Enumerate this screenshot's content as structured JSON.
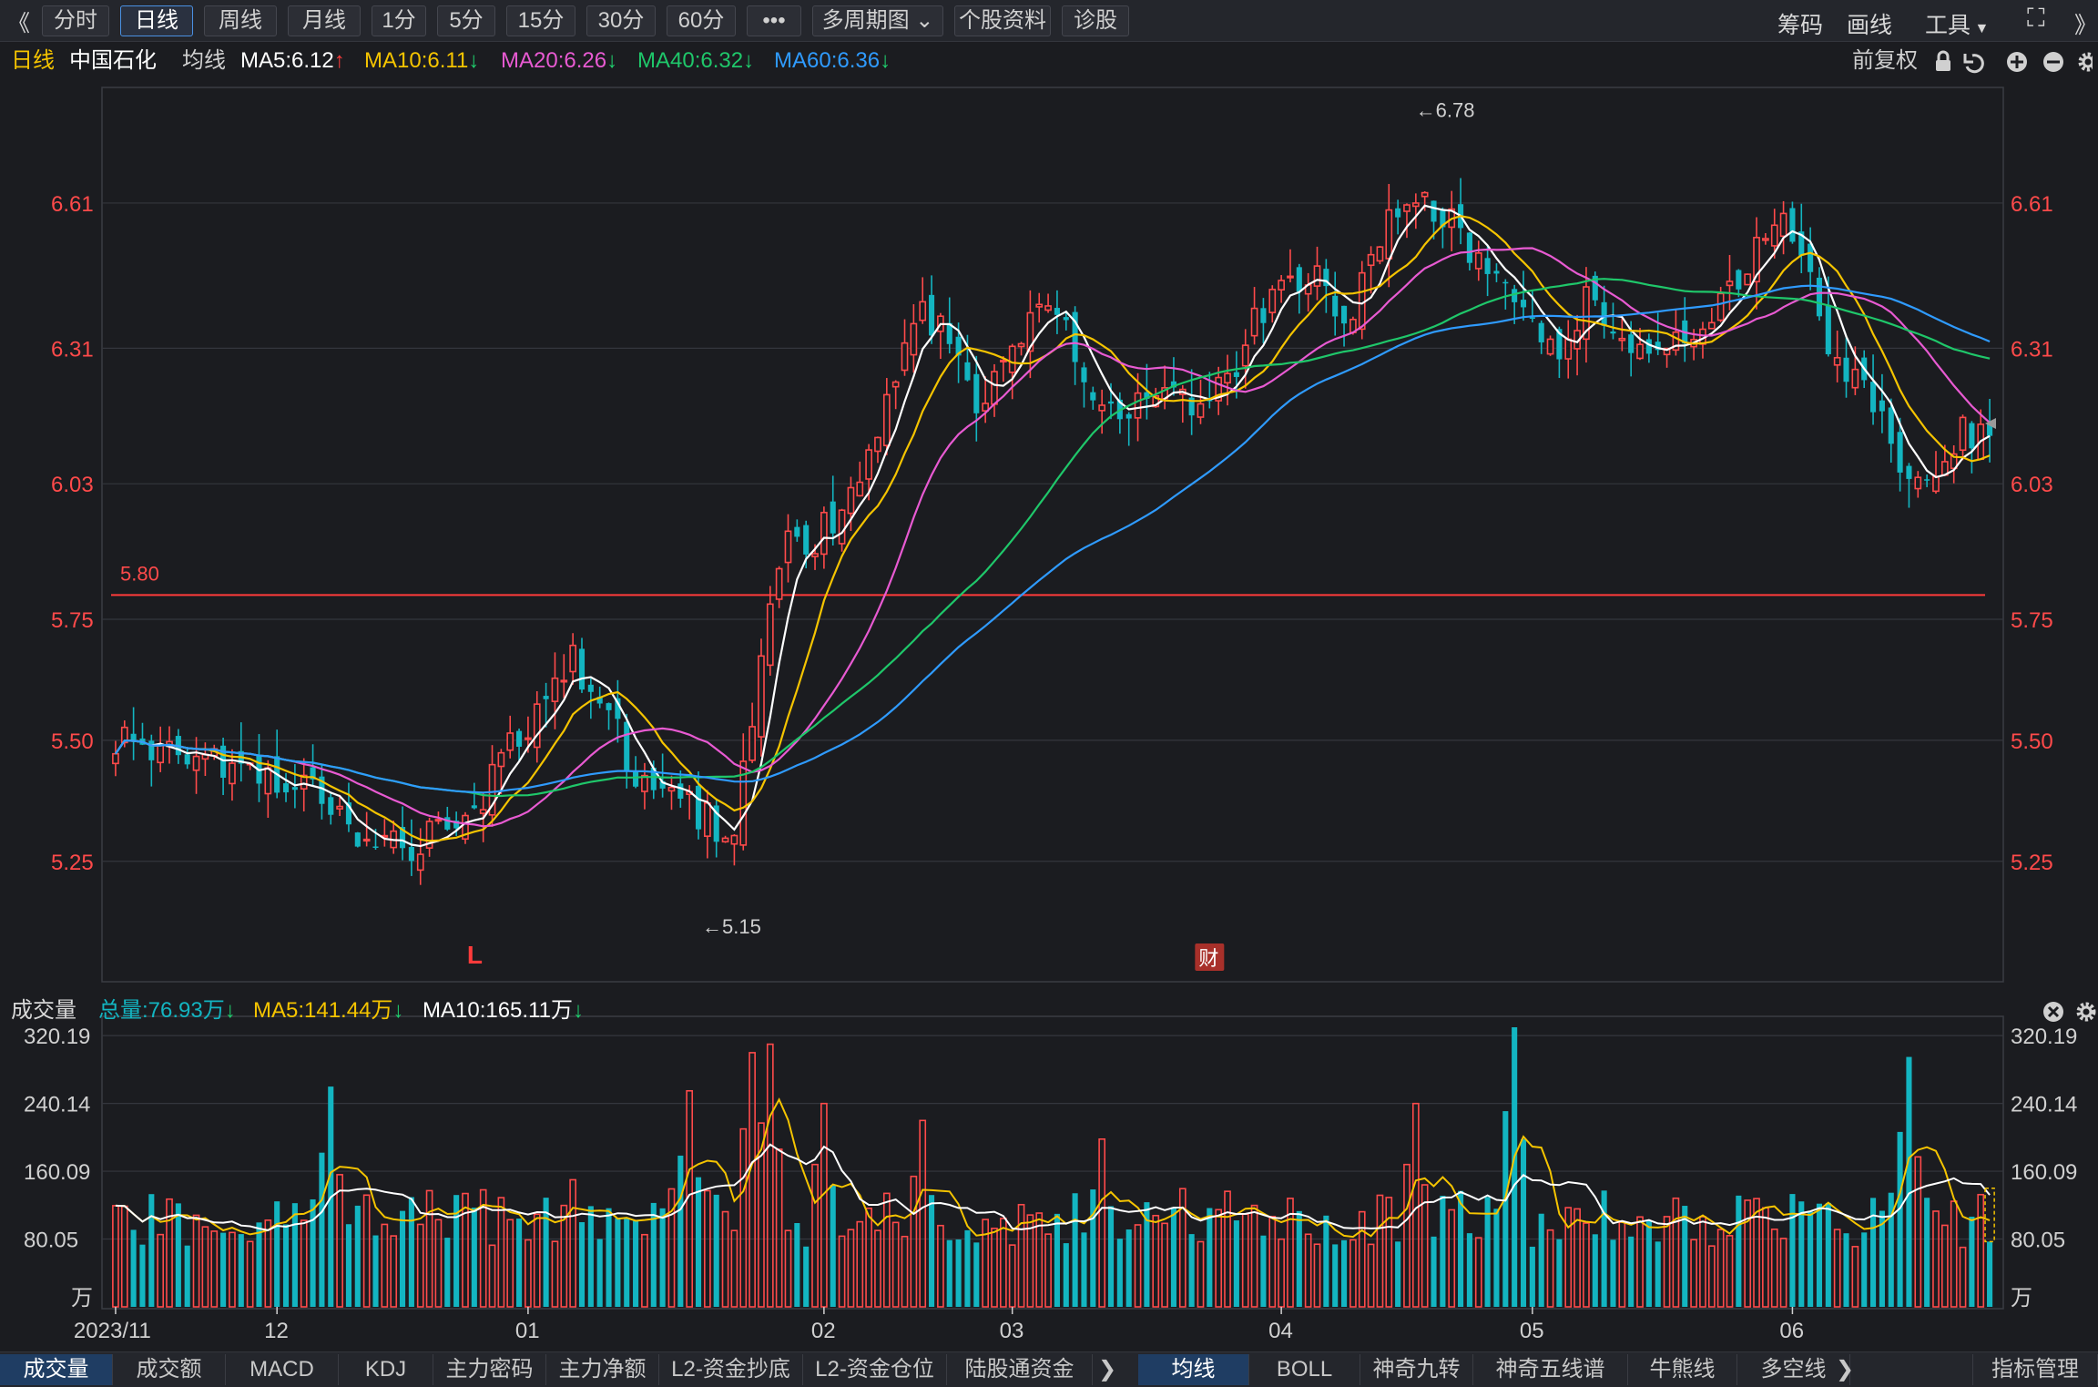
{
  "toolbar": {
    "back_label": "《",
    "periods": [
      "分时",
      "日线",
      "周线",
      "月线",
      "1分",
      "5分",
      "15分",
      "30分",
      "60分",
      "•••",
      "多周期图",
      "个股资料",
      "诊股"
    ],
    "active_period": "日线",
    "right_items": [
      "筹码",
      "画线",
      "工具"
    ],
    "fullscreen_label": "⛶",
    "more_label": "》"
  },
  "stock": {
    "period_label": "日线",
    "name": "中国石化",
    "ma_label": "均线",
    "ma": [
      {
        "name": "MA5:6.12",
        "color": "#ffffff",
        "arrow": "↑",
        "arrow_color": "#ff3b3b"
      },
      {
        "name": "MA10:6.11",
        "color": "#f5c400",
        "arrow": "↓",
        "arrow_color": "#1fd16e"
      },
      {
        "name": "MA20:6.26",
        "color": "#e85ad2",
        "arrow": "↓",
        "arrow_color": "#1fd16e"
      },
      {
        "name": "MA40:6.32",
        "color": "#1fc76a",
        "arrow": "↓",
        "arrow_color": "#1fd16e"
      },
      {
        "name": "MA60:6.36",
        "color": "#2f9bff",
        "arrow": "↓",
        "arrow_color": "#1fd16e"
      }
    ],
    "adjust_label": "前复权"
  },
  "volume": {
    "title": "成交量",
    "total": "总量:76.93万",
    "total_arrow": "↓",
    "ma5": "MA5:141.44万",
    "ma5_arrow": "↓",
    "ma10": "MA10:165.11万",
    "ma10_arrow": "↓"
  },
  "bottom_tabs_left": [
    "成交量",
    "成交额",
    "MACD",
    "KDJ",
    "主力密码",
    "主力净额",
    "L2-资金抄底",
    "L2-资金仓位",
    "陆股通资金"
  ],
  "bottom_tabs_right": [
    "均线",
    "BOLL",
    "神奇九转",
    "神奇五线谱",
    "牛熊线",
    "多空线"
  ],
  "bottom_right": "指标管理",
  "bottom_arrow": "❯",
  "chart_data": {
    "type": "candlestick",
    "price_axis_ticks": [
      "6.61",
      "6.31",
      "6.03",
      "5.75",
      "5.50",
      "5.25"
    ],
    "price_ylim": [
      5.02,
      6.83
    ],
    "volume_axis_ticks": [
      "320.19",
      "240.14",
      "160.09",
      "80.05"
    ],
    "volume_unit": "万",
    "volume_ylim": [
      0,
      330
    ],
    "x_labels": [
      {
        "label": "2023/11",
        "index": 0
      },
      {
        "label": "12",
        "index": 18
      },
      {
        "label": "01",
        "index": 46
      },
      {
        "label": "02",
        "index": 79
      },
      {
        "label": "03",
        "index": 100
      },
      {
        "label": "04",
        "index": 130
      },
      {
        "label": "05",
        "index": 158
      },
      {
        "label": "06",
        "index": 187
      }
    ],
    "hline": {
      "value": 5.8,
      "label": "5.80"
    },
    "high_annotation": {
      "label": "←6.78",
      "index": 146
    },
    "low_annotation": {
      "label": "←5.15",
      "index": 65
    },
    "markers": [
      {
        "label": "L",
        "index": 40
      },
      {
        "label": "财",
        "index": 122
      }
    ],
    "anchors": [
      [
        0,
        5.5
      ],
      [
        4,
        5.46
      ],
      [
        8,
        5.48
      ],
      [
        12,
        5.46
      ],
      [
        16,
        5.44
      ],
      [
        20,
        5.42
      ],
      [
        24,
        5.38
      ],
      [
        28,
        5.3
      ],
      [
        32,
        5.28
      ],
      [
        36,
        5.3
      ],
      [
        40,
        5.36
      ],
      [
        43,
        5.45
      ],
      [
        48,
        5.58
      ],
      [
        51,
        5.66
      ],
      [
        54,
        5.58
      ],
      [
        58,
        5.44
      ],
      [
        62,
        5.38
      ],
      [
        66,
        5.34
      ],
      [
        69,
        5.3
      ],
      [
        70,
        5.45
      ],
      [
        72,
        5.68
      ],
      [
        75,
        5.92
      ],
      [
        78,
        5.92
      ],
      [
        81,
        5.96
      ],
      [
        84,
        6.1
      ],
      [
        87,
        6.28
      ],
      [
        89,
        6.4
      ],
      [
        92,
        6.34
      ],
      [
        94,
        6.3
      ],
      [
        96,
        6.2
      ],
      [
        100,
        6.28
      ],
      [
        103,
        6.44
      ],
      [
        106,
        6.36
      ],
      [
        109,
        6.22
      ],
      [
        112,
        6.18
      ],
      [
        115,
        6.2
      ],
      [
        118,
        6.22
      ],
      [
        121,
        6.2
      ],
      [
        124,
        6.24
      ],
      [
        128,
        6.4
      ],
      [
        131,
        6.48
      ],
      [
        134,
        6.44
      ],
      [
        137,
        6.36
      ],
      [
        140,
        6.5
      ],
      [
        143,
        6.62
      ],
      [
        146,
        6.6
      ],
      [
        149,
        6.56
      ],
      [
        152,
        6.5
      ],
      [
        155,
        6.44
      ],
      [
        158,
        6.36
      ],
      [
        161,
        6.3
      ],
      [
        164,
        6.4
      ],
      [
        167,
        6.36
      ],
      [
        170,
        6.32
      ],
      [
        173,
        6.3
      ],
      [
        176,
        6.34
      ],
      [
        179,
        6.4
      ],
      [
        182,
        6.5
      ],
      [
        185,
        6.58
      ],
      [
        188,
        6.5
      ],
      [
        191,
        6.3
      ],
      [
        194,
        6.24
      ],
      [
        197,
        6.14
      ],
      [
        200,
        6.04
      ],
      [
        203,
        6.05
      ],
      [
        206,
        6.14
      ],
      [
        209,
        6.14
      ]
    ],
    "count": 210,
    "vol_peaks": [
      {
        "index": 24,
        "value": 260
      },
      {
        "index": 51,
        "value": 150
      },
      {
        "index": 64,
        "value": 255
      },
      {
        "index": 71,
        "value": 300
      },
      {
        "index": 73,
        "value": 310
      },
      {
        "index": 79,
        "value": 240
      },
      {
        "index": 90,
        "value": 220
      },
      {
        "index": 110,
        "value": 198
      },
      {
        "index": 145,
        "value": 240
      },
      {
        "index": 156,
        "value": 330
      },
      {
        "index": 200,
        "value": 295
      }
    ]
  }
}
